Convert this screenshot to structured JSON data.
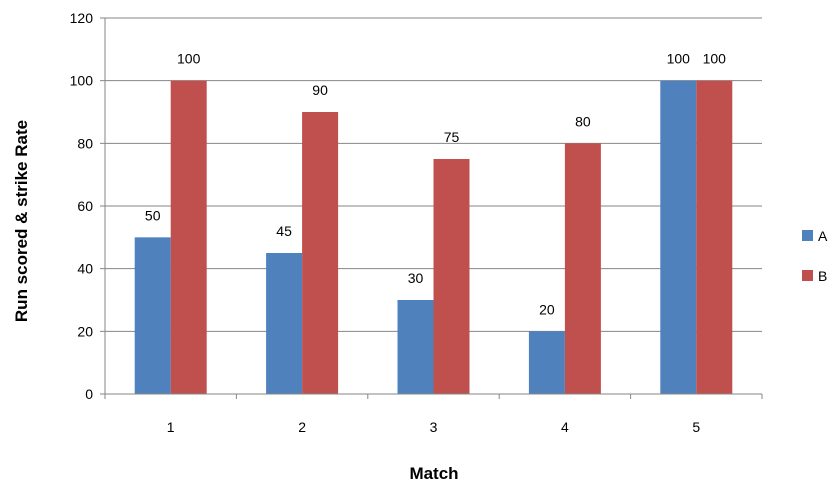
{
  "chart_data": {
    "type": "bar",
    "categories": [
      "1",
      "2",
      "3",
      "4",
      "5"
    ],
    "series": [
      {
        "name": "A",
        "values": [
          50,
          45,
          30,
          20,
          100
        ],
        "color": "#4f81bd"
      },
      {
        "name": "B",
        "values": [
          100,
          90,
          75,
          80,
          100
        ],
        "color": "#c0504d"
      }
    ],
    "xlabel": "Match",
    "ylabel": "Run scored & strike Rate",
    "ylim": [
      0,
      120
    ],
    "yticks": [
      0,
      20,
      40,
      60,
      80,
      100,
      120
    ],
    "grid": true,
    "legend_position": "right",
    "data_labels": true,
    "gridline_color": "#868686",
    "axis_color": "#868686"
  }
}
